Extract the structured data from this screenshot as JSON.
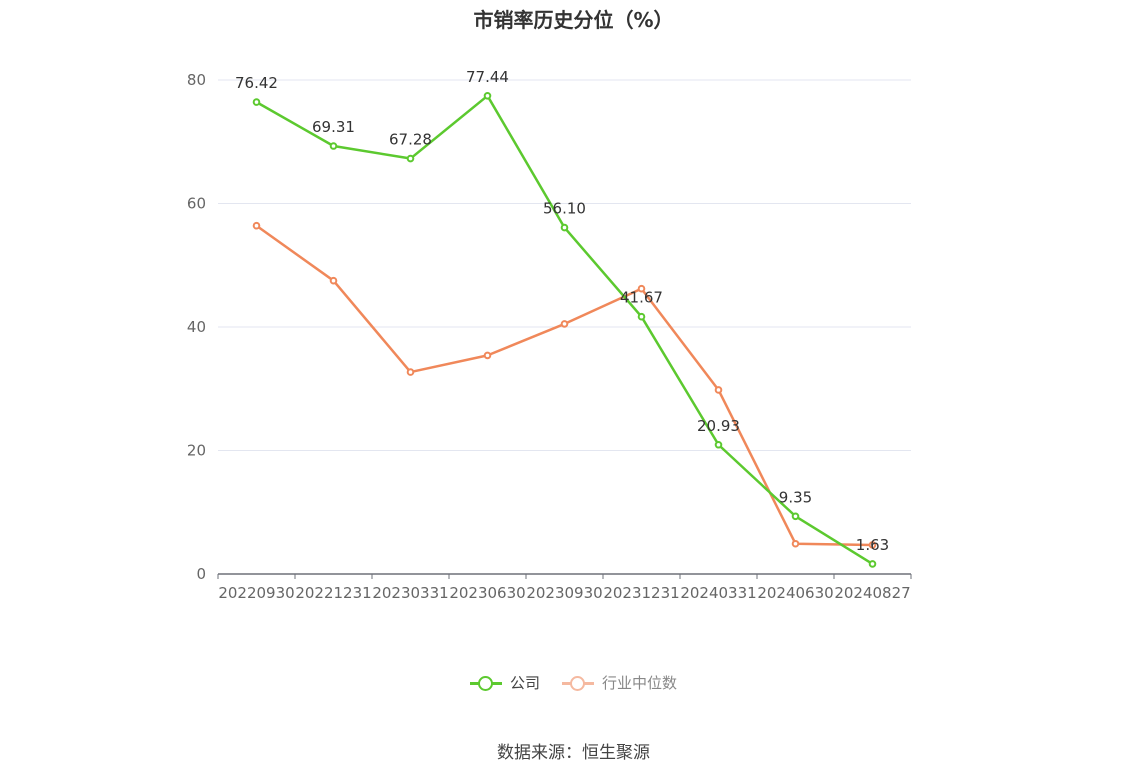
{
  "title": "市销率历史分位（%）",
  "source": "数据来源：恒生聚源",
  "chart_data": {
    "type": "line",
    "title": "市销率历史分位（%）",
    "categories": [
      "20220930",
      "20221231",
      "20230331",
      "20230630",
      "20230930",
      "20231231",
      "20240331",
      "20240630",
      "20240827"
    ],
    "ylim": [
      0,
      80
    ],
    "yticks": [
      0,
      20,
      40,
      60,
      80
    ],
    "grid": true,
    "legend_position": "bottom",
    "series": [
      {
        "name": "公司",
        "color": "#5cc92f",
        "values": [
          76.42,
          69.31,
          67.28,
          77.44,
          56.1,
          41.67,
          20.93,
          9.35,
          1.63
        ],
        "labels": [
          "76.42",
          "69.31",
          "67.28",
          "77.44",
          "56.10",
          "41.67",
          "20.93",
          "9.35",
          "1.63"
        ]
      },
      {
        "name": "行业中位数",
        "color": "#f0885a",
        "values": [
          56.4,
          47.5,
          32.7,
          35.4,
          40.5,
          46.2,
          29.8,
          4.9,
          4.7
        ]
      }
    ]
  }
}
